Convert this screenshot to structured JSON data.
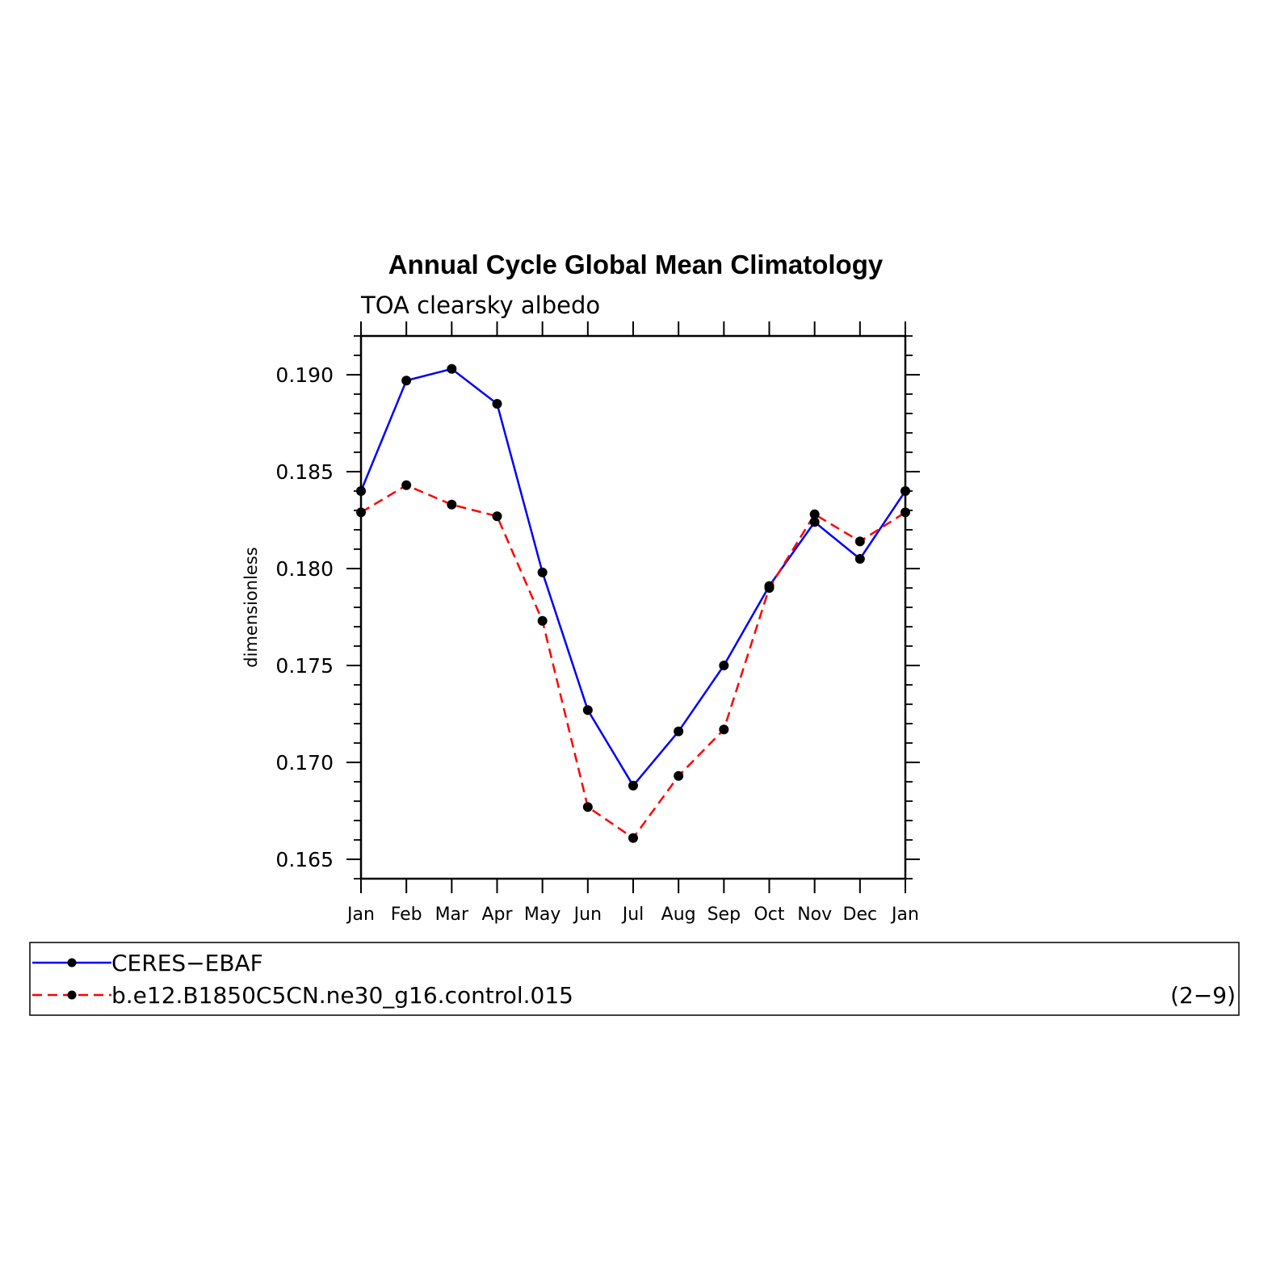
{
  "chart_data": {
    "type": "line",
    "title": "Annual Cycle Global Mean Climatology",
    "subtitle": "TOA clearsky albedo",
    "xlabel": "",
    "ylabel": "dimensionless",
    "categories": [
      "Jan",
      "Feb",
      "Mar",
      "Apr",
      "May",
      "Jun",
      "Jul",
      "Aug",
      "Sep",
      "Oct",
      "Nov",
      "Dec",
      "Jan"
    ],
    "ylim": [
      0.164,
      0.192
    ],
    "yticks": [
      0.165,
      0.17,
      0.175,
      0.18,
      0.185,
      0.19
    ],
    "ytick_labels": [
      "0.165",
      "0.170",
      "0.175",
      "0.180",
      "0.185",
      "0.190"
    ],
    "yminor_step": 0.001,
    "grid": false,
    "legend_position": "bottom",
    "series": [
      {
        "name": "CERES−EBAF",
        "color": "#0000ff",
        "line_style": "solid",
        "values": [
          0.184,
          0.1897,
          0.1903,
          0.1885,
          0.1798,
          0.1727,
          0.1688,
          0.1716,
          0.175,
          0.1791,
          0.1824,
          0.1805,
          0.184
        ]
      },
      {
        "name": "b.e12.B1850C5CN.ne30_g16.control.015",
        "color": "#ff0000",
        "line_style": "dashed",
        "values": [
          0.1829,
          0.1843,
          0.1833,
          0.1827,
          0.1773,
          0.1677,
          0.1661,
          0.1693,
          0.1717,
          0.179,
          0.1828,
          0.1814,
          0.1829
        ]
      }
    ],
    "annotation": "(2−9)"
  }
}
